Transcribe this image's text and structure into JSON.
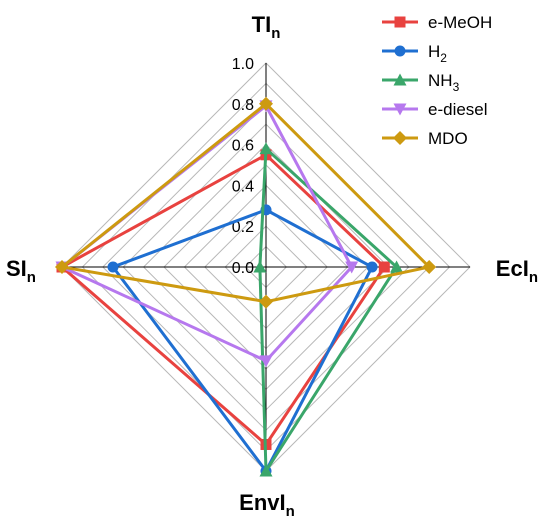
{
  "chart_data": {
    "type": "radar",
    "axes": [
      {
        "key": "TI",
        "label": "TI",
        "sub": "n"
      },
      {
        "key": "EcI",
        "label": "EcI",
        "sub": "n"
      },
      {
        "key": "EnvI",
        "label": "EnvI",
        "sub": "n"
      },
      {
        "key": "SI",
        "label": "SI",
        "sub": "n"
      }
    ],
    "rlim": [
      0,
      1
    ],
    "ticks": [
      "0.0",
      "0.2",
      "0.4",
      "0.6",
      "0.8",
      "1.0"
    ],
    "tick_values": [
      0,
      0.2,
      0.4,
      0.6,
      0.8,
      1.0
    ],
    "grid": true,
    "legend_position": "top-right",
    "series": [
      {
        "name": "e-MeOH",
        "sub": "",
        "color": "#e8423f",
        "marker": "square",
        "values": [
          0.55,
          0.58,
          0.87,
          1.0
        ]
      },
      {
        "name": "H",
        "sub": "2",
        "color": "#1f6fd1",
        "marker": "circle",
        "values": [
          0.28,
          0.52,
          1.0,
          0.75
        ]
      },
      {
        "name": "NH",
        "sub": "3",
        "color": "#3aa66a",
        "marker": "triangle-up",
        "values": [
          0.58,
          0.64,
          1.0,
          0.03
        ]
      },
      {
        "name": "e-diesel",
        "sub": "",
        "color": "#b678ee",
        "marker": "triangle-down",
        "values": [
          0.79,
          0.42,
          0.46,
          1.0
        ]
      },
      {
        "name": "MDO",
        "sub": "",
        "color": "#cd9a10",
        "marker": "diamond",
        "values": [
          0.8,
          0.8,
          0.17,
          1.0
        ]
      }
    ]
  }
}
